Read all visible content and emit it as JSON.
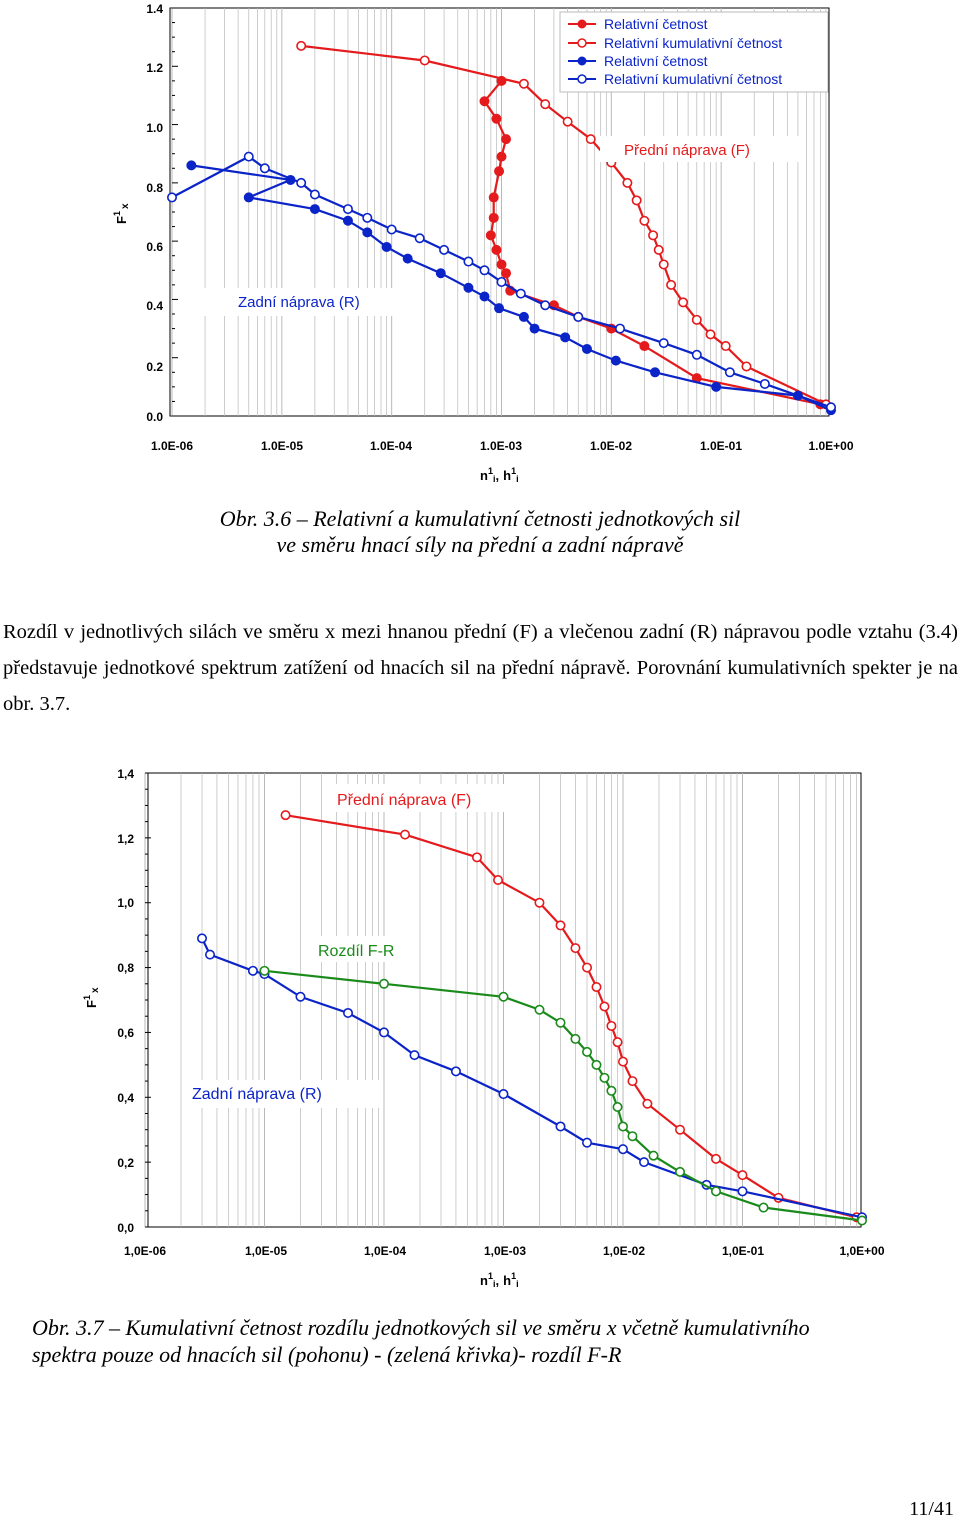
{
  "figure1": {
    "caption_line1": "Obr. 3.6 – Relativní a kumulativní četnosti jednotkových sil",
    "caption_line2": "ve směru hnací síly na přední a zadní nápravě",
    "ylabel": "F",
    "ylabel_sup": "1",
    "ylabel_sub": "x",
    "xlabel_n": "n",
    "xlabel_h": "h",
    "xlabel_sup": "1",
    "xlabel_sub": "i",
    "xlabel_sep": ",",
    "y_ticks": [
      "0.0",
      "0.2",
      "0.4",
      "0.6",
      "0.8",
      "1.0",
      "1.2",
      "1.4"
    ],
    "x_ticks": [
      "1.0E-06",
      "1.0E-05",
      "1.0E-04",
      "1.0E-03",
      "1.0E-02",
      "1.0E-01",
      "1.0E+00"
    ],
    "legend": [
      "Relativní četnost",
      "Relativní kumulativní četnost",
      "Relativní četnost",
      "Relativní kumulativní četnost"
    ],
    "label_front": "Přední náprava (F)",
    "label_rear": "Zadní náprava (R)"
  },
  "paragraph": "Rozdíl v jednotlivých silách ve směru x mezi hnanou přední (F) a vlečenou zadní (R) nápravou podle vztahu (3.4) představuje jednotkové spektrum zatížení od hnacích sil na přední nápravě. Porovnání kumulativních spekter je na obr. 3.7.",
  "figure2": {
    "caption_line1": "Obr. 3.7 – Kumulativní četnost rozdílu jednotkových sil ve směru x včetně kumulativního",
    "caption_line2": "spektra pouze od hnacích sil (pohonu) - (zelená křivka)- rozdíl F-R",
    "ylabel": "F",
    "ylabel_sup": "1",
    "ylabel_sub": "x",
    "xlabel_n": "n",
    "xlabel_h": "h",
    "xlabel_sup": "1",
    "xlabel_sub": "i",
    "xlabel_sep": ",",
    "y_ticks": [
      "0,0",
      "0,2",
      "0,4",
      "0,6",
      "0,8",
      "1,0",
      "1,2",
      "1,4"
    ],
    "x_ticks": [
      "1,0E-06",
      "1,0E-05",
      "1,0E-04",
      "1,0E-03",
      "1,0E-02",
      "1,0E-01",
      "1,0E+00"
    ],
    "label_front": "Přední náprava (F)",
    "label_diff": "Rozdíl F-R",
    "label_rear": "Zadní náprava (R)"
  },
  "page_number": "11/41",
  "colors": {
    "front": "#e41a1c",
    "rear": "#0b24c8",
    "diff": "#1a8a1a",
    "grid": "#b8b8b8"
  },
  "chart_data": [
    {
      "type": "scatter",
      "x_scale": "log",
      "xlim": [
        1e-06,
        1
      ],
      "ylim": [
        0,
        1.4
      ],
      "grid": true,
      "legend_position": "top-right",
      "series": [
        {
          "name": "Relativní četnost",
          "style": "filled",
          "color": "#e41a1c",
          "x": [
            0.001,
            0.0007,
            0.0009,
            0.0011,
            0.001,
            0.00095,
            0.00085,
            0.00085,
            0.0008,
            0.0009,
            0.001,
            0.0011,
            0.0012,
            0.003,
            0.005,
            0.01,
            0.02,
            0.06,
            0.8
          ],
          "y": [
            1.15,
            1.08,
            1.02,
            0.95,
            0.89,
            0.84,
            0.75,
            0.68,
            0.62,
            0.57,
            0.52,
            0.49,
            0.43,
            0.38,
            0.34,
            0.3,
            0.24,
            0.13,
            0.04
          ]
        },
        {
          "name": "Relativní kumulativní četnost",
          "style": "hollow",
          "color": "#e41a1c",
          "x": [
            1.5e-05,
            0.0002,
            0.0016,
            0.0025,
            0.004,
            0.0065,
            0.01,
            0.014,
            0.017,
            0.02,
            0.024,
            0.027,
            0.03,
            0.035,
            0.045,
            0.06,
            0.08,
            0.11,
            0.17,
            0.9
          ],
          "y": [
            1.27,
            1.22,
            1.14,
            1.07,
            1.01,
            0.95,
            0.87,
            0.8,
            0.74,
            0.67,
            0.62,
            0.57,
            0.52,
            0.45,
            0.39,
            0.33,
            0.28,
            0.24,
            0.17,
            0.04
          ]
        },
        {
          "name": "Relativní četnost",
          "style": "filled",
          "color": "#0b24c8",
          "x": [
            1.5e-06,
            1.2e-05,
            5e-06,
            2e-05,
            4e-05,
            6e-05,
            9e-05,
            0.00014,
            0.00028,
            0.0005,
            0.0007,
            0.00095,
            0.0016,
            0.002,
            0.0038,
            0.006,
            0.011,
            0.025,
            0.09,
            0.5,
            1.0
          ],
          "y": [
            0.86,
            0.81,
            0.75,
            0.71,
            0.67,
            0.63,
            0.58,
            0.54,
            0.49,
            0.44,
            0.41,
            0.37,
            0.34,
            0.3,
            0.27,
            0.23,
            0.19,
            0.15,
            0.1,
            0.07,
            0.02
          ]
        },
        {
          "name": "Relativní kumulativní četnost",
          "style": "hollow",
          "color": "#0b24c8",
          "x": [
            1e-06,
            5e-06,
            7e-06,
            1.5e-05,
            2e-05,
            4e-05,
            6e-05,
            0.0001,
            0.00018,
            0.0003,
            0.0005,
            0.0007,
            0.001,
            0.0015,
            0.0025,
            0.005,
            0.012,
            0.03,
            0.06,
            0.12,
            0.25,
            1.0
          ],
          "y": [
            0.75,
            0.89,
            0.85,
            0.8,
            0.76,
            0.71,
            0.68,
            0.64,
            0.61,
            0.57,
            0.53,
            0.5,
            0.46,
            0.42,
            0.38,
            0.34,
            0.3,
            0.25,
            0.21,
            0.15,
            0.11,
            0.03
          ]
        }
      ]
    },
    {
      "type": "line",
      "x_scale": "log",
      "xlim": [
        1e-06,
        1
      ],
      "ylim": [
        0,
        1.4
      ],
      "grid": true,
      "series": [
        {
          "style": "hollow",
          "color": "#e41a1c",
          "x": [
            1.5e-05,
            0.00015,
            0.0006,
            0.0009,
            0.002,
            0.003,
            0.004,
            0.005,
            0.006,
            0.007,
            0.008,
            0.009,
            0.01,
            0.012,
            0.016,
            0.03,
            0.06,
            0.1,
            0.2,
            0.9
          ],
          "y": [
            1.27,
            1.21,
            1.14,
            1.07,
            1.0,
            0.93,
            0.86,
            0.8,
            0.74,
            0.68,
            0.62,
            0.57,
            0.51,
            0.45,
            0.38,
            0.3,
            0.21,
            0.16,
            0.09,
            0.03
          ]
        },
        {
          "style": "hollow",
          "color": "#0b24c8",
          "x": [
            3e-06,
            3.5e-06,
            8e-06,
            1e-05,
            2e-05,
            5e-05,
            0.0001,
            0.00018,
            0.0004,
            0.001,
            0.003,
            0.005,
            0.01,
            0.015,
            0.05,
            0.1,
            1.0
          ],
          "y": [
            0.89,
            0.84,
            0.79,
            0.78,
            0.71,
            0.66,
            0.6,
            0.53,
            0.48,
            0.41,
            0.31,
            0.26,
            0.24,
            0.2,
            0.13,
            0.11,
            0.03
          ]
        },
        {
          "name": "Rozdíl F-R",
          "style": "hollow",
          "color": "#1a8a1a",
          "x": [
            1e-05,
            0.0001,
            0.001,
            0.002,
            0.003,
            0.004,
            0.005,
            0.006,
            0.007,
            0.008,
            0.009,
            0.01,
            0.012,
            0.018,
            0.03,
            0.06,
            0.15,
            1.0
          ],
          "y": [
            0.79,
            0.75,
            0.71,
            0.67,
            0.63,
            0.58,
            0.54,
            0.5,
            0.46,
            0.42,
            0.37,
            0.31,
            0.28,
            0.22,
            0.17,
            0.11,
            0.06,
            0.02
          ]
        }
      ]
    }
  ]
}
